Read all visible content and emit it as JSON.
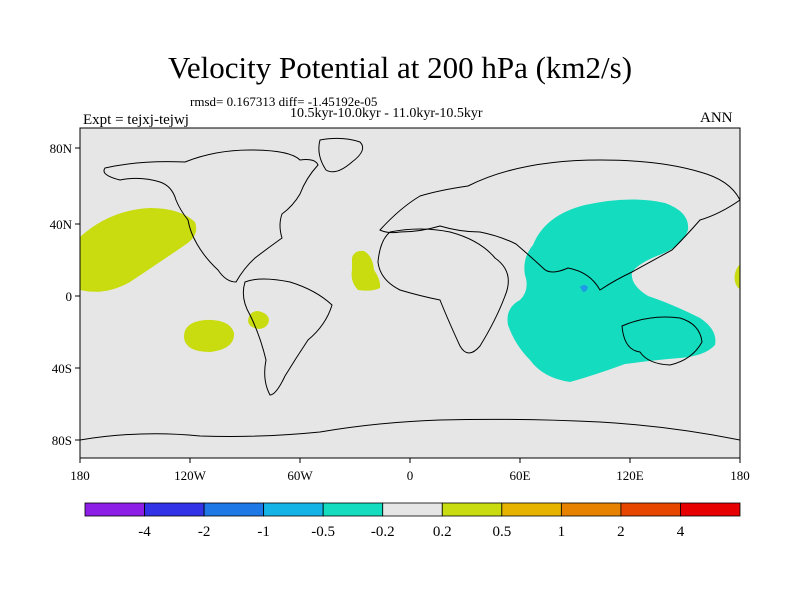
{
  "title": "Velocity Potential at 200 hPa (km2/s)",
  "stats": "rmsd= 0.167313  diff= -1.45192e-05",
  "subtitle": "10.5kyr-10.0kyr - 11.0kyr-10.5kyr",
  "expt": "Expt = tejxj-tejwj",
  "season": "ANN",
  "axes": {
    "x_ticks": [
      "180",
      "120W",
      "60W",
      "0",
      "60E",
      "120E",
      "180"
    ],
    "y_ticks": [
      "80N",
      "40N",
      "0",
      "40S",
      "80S"
    ]
  },
  "colors": {
    "land_bg": "#e6e6e6",
    "positive": "#c8dc10",
    "negative": "#14dcbe",
    "minor_negative": "#1e9be6",
    "coastline": "#000000"
  },
  "regions": [
    {
      "name": "positive-anomaly-north-pacific",
      "sign": "positive"
    },
    {
      "name": "positive-anomaly-south-pacific",
      "sign": "positive"
    },
    {
      "name": "positive-anomaly-peru",
      "sign": "positive"
    },
    {
      "name": "positive-anomaly-tropical-atlantic",
      "sign": "positive"
    },
    {
      "name": "positive-anomaly-date-line",
      "sign": "positive"
    },
    {
      "name": "negative-anomaly-indo-pacific",
      "sign": "negative"
    }
  ],
  "colorbar": {
    "colors": [
      "#8c1ee6",
      "#3232e6",
      "#1e78e6",
      "#14b4e6",
      "#14dcbe",
      "#e6e6e6",
      "#c8dc10",
      "#e6b400",
      "#e68200",
      "#e64600",
      "#e60000"
    ],
    "labels": [
      "-4",
      "-2",
      "-1",
      "-0.5",
      "-0.2",
      "0.2",
      "0.5",
      "1",
      "2",
      "4"
    ]
  }
}
